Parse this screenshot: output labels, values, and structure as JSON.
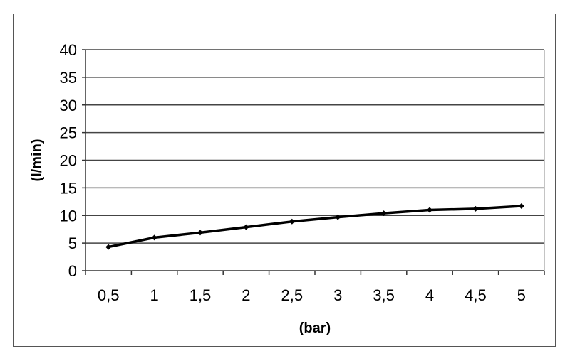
{
  "chart_data": {
    "type": "line",
    "title": "",
    "xlabel": "(bar)",
    "ylabel": "(l/min)",
    "categories": [
      "0,5",
      "1",
      "1,5",
      "2",
      "2,5",
      "3",
      "3,5",
      "4",
      "4,5",
      "5"
    ],
    "series": [
      {
        "values": [
          4.3,
          6.0,
          6.9,
          7.9,
          8.9,
          9.7,
          10.4,
          11.0,
          11.2,
          11.7
        ],
        "color": "#000000"
      }
    ],
    "ylim": [
      0,
      40
    ],
    "yticks": [
      "0",
      "5",
      "10",
      "15",
      "20",
      "25",
      "30",
      "35",
      "40"
    ],
    "grid": "horizontal",
    "legend": "none"
  }
}
